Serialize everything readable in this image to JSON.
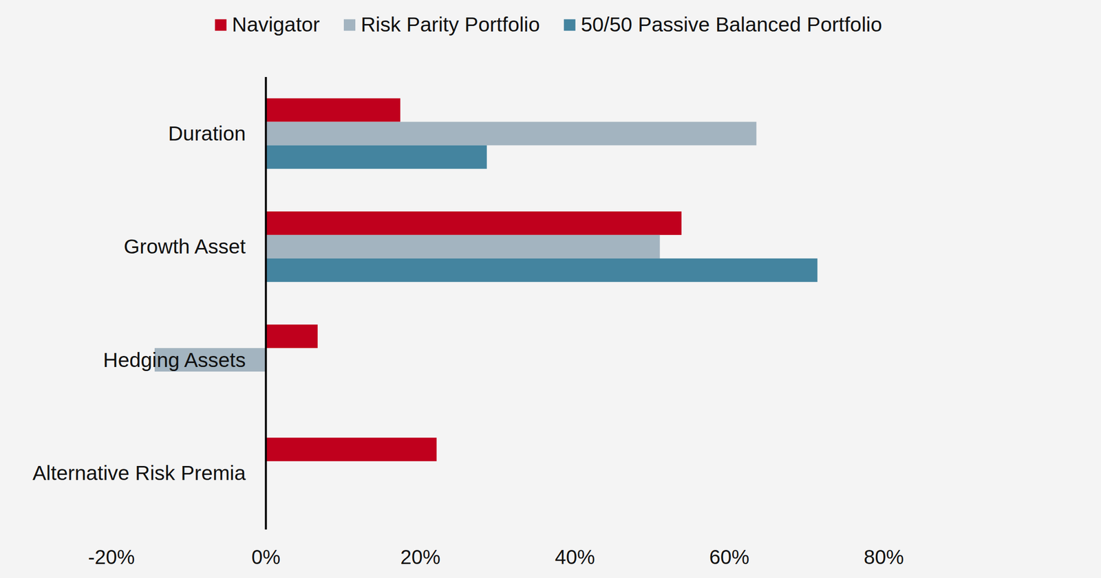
{
  "chart_data": {
    "type": "bar",
    "orientation": "horizontal",
    "categories": [
      "Duration",
      "Growth Asset",
      "Hedging Assets",
      "Alternative Risk Premia"
    ],
    "series": [
      {
        "name": "Navigator",
        "color": "#c0001d",
        "values": [
          17.4,
          53.8,
          6.7,
          22.1
        ]
      },
      {
        "name": "Risk Parity Portfolio",
        "color": "#a3b4c0",
        "values": [
          63.5,
          51.0,
          -14.4,
          0
        ]
      },
      {
        "name": "50/50 Passive Balanced Portfolio",
        "color": "#44849f",
        "values": [
          28.6,
          71.4,
          0,
          0
        ]
      }
    ],
    "xlim": [
      -20,
      80
    ],
    "xticks": [
      {
        "value": -20,
        "label": "-20%"
      },
      {
        "value": 0,
        "label": "0%"
      },
      {
        "value": 20,
        "label": "20%"
      },
      {
        "value": 40,
        "label": "40%"
      },
      {
        "value": 60,
        "label": "60%"
      },
      {
        "value": 80,
        "label": "80%"
      }
    ],
    "grid": false,
    "legend": "top"
  }
}
